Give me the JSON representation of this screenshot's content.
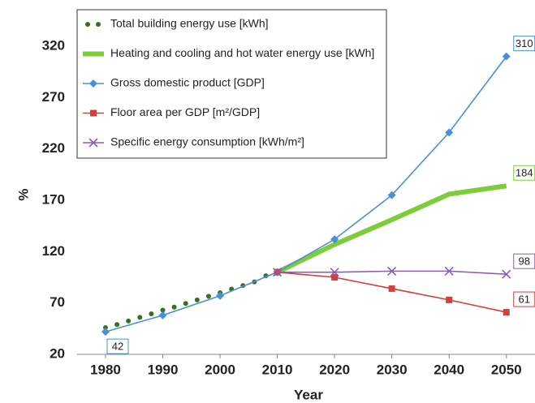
{
  "chart_data": {
    "type": "line",
    "x_label": "Year",
    "y_label": "%",
    "xlim": [
      1975,
      2055
    ],
    "xticks": [
      1980,
      1990,
      2000,
      2010,
      2020,
      2030,
      2040,
      2050
    ],
    "ylim": [
      20,
      340
    ],
    "yticks": [
      20,
      70,
      120,
      170,
      220,
      270,
      320
    ],
    "series": [
      {
        "name": "Total building energy use  [kWh]",
        "color": "#3a6e1e",
        "style": "dotted",
        "x": [
          1980,
          1982,
          1984,
          1986,
          1988,
          1990,
          1992,
          1994,
          1996,
          1998,
          2000,
          2002,
          2004,
          2006,
          2008,
          2010
        ],
        "values": [
          46,
          49,
          52.5,
          56,
          59.5,
          63,
          66,
          69.5,
          73,
          76.5,
          80,
          83.5,
          87,
          90.5,
          96.5,
          100
        ]
      },
      {
        "name": "Heating and cooling and hot water energy use  [kWh]",
        "color": "#7dcc3a",
        "style": "thick",
        "x": [
          2010,
          2020,
          2030,
          2040,
          2050
        ],
        "values": [
          100,
          127,
          151,
          176,
          184
        ],
        "value_labels": [
          null,
          null,
          null,
          null,
          "184"
        ]
      },
      {
        "name": "Gross domestic product  [GDP]",
        "color": "#4a90d9",
        "style": "diamond",
        "x": [
          1980,
          1990,
          2000,
          2010,
          2020,
          2030,
          2040,
          2050
        ],
        "values": [
          42,
          58,
          77,
          100,
          132,
          175,
          236,
          310
        ],
        "value_labels": [
          "42",
          null,
          null,
          null,
          null,
          null,
          null,
          "310"
        ]
      },
      {
        "name": "Floor area per GDP  [m²/GDP]",
        "color": "#d0403c",
        "style": "square",
        "x": [
          2010,
          2020,
          2030,
          2040,
          2050
        ],
        "values": [
          100,
          95,
          84,
          73,
          61
        ],
        "value_labels": [
          null,
          null,
          null,
          null,
          "61"
        ]
      },
      {
        "name": "Specific energy consumption  [kWh/m²]",
        "color": "#8a5fb0",
        "style": "cross",
        "x": [
          2010,
          2020,
          2030,
          2040,
          2050
        ],
        "values": [
          100,
          100,
          101,
          101,
          98
        ],
        "value_labels": [
          null,
          null,
          null,
          null,
          "98"
        ]
      }
    ]
  }
}
